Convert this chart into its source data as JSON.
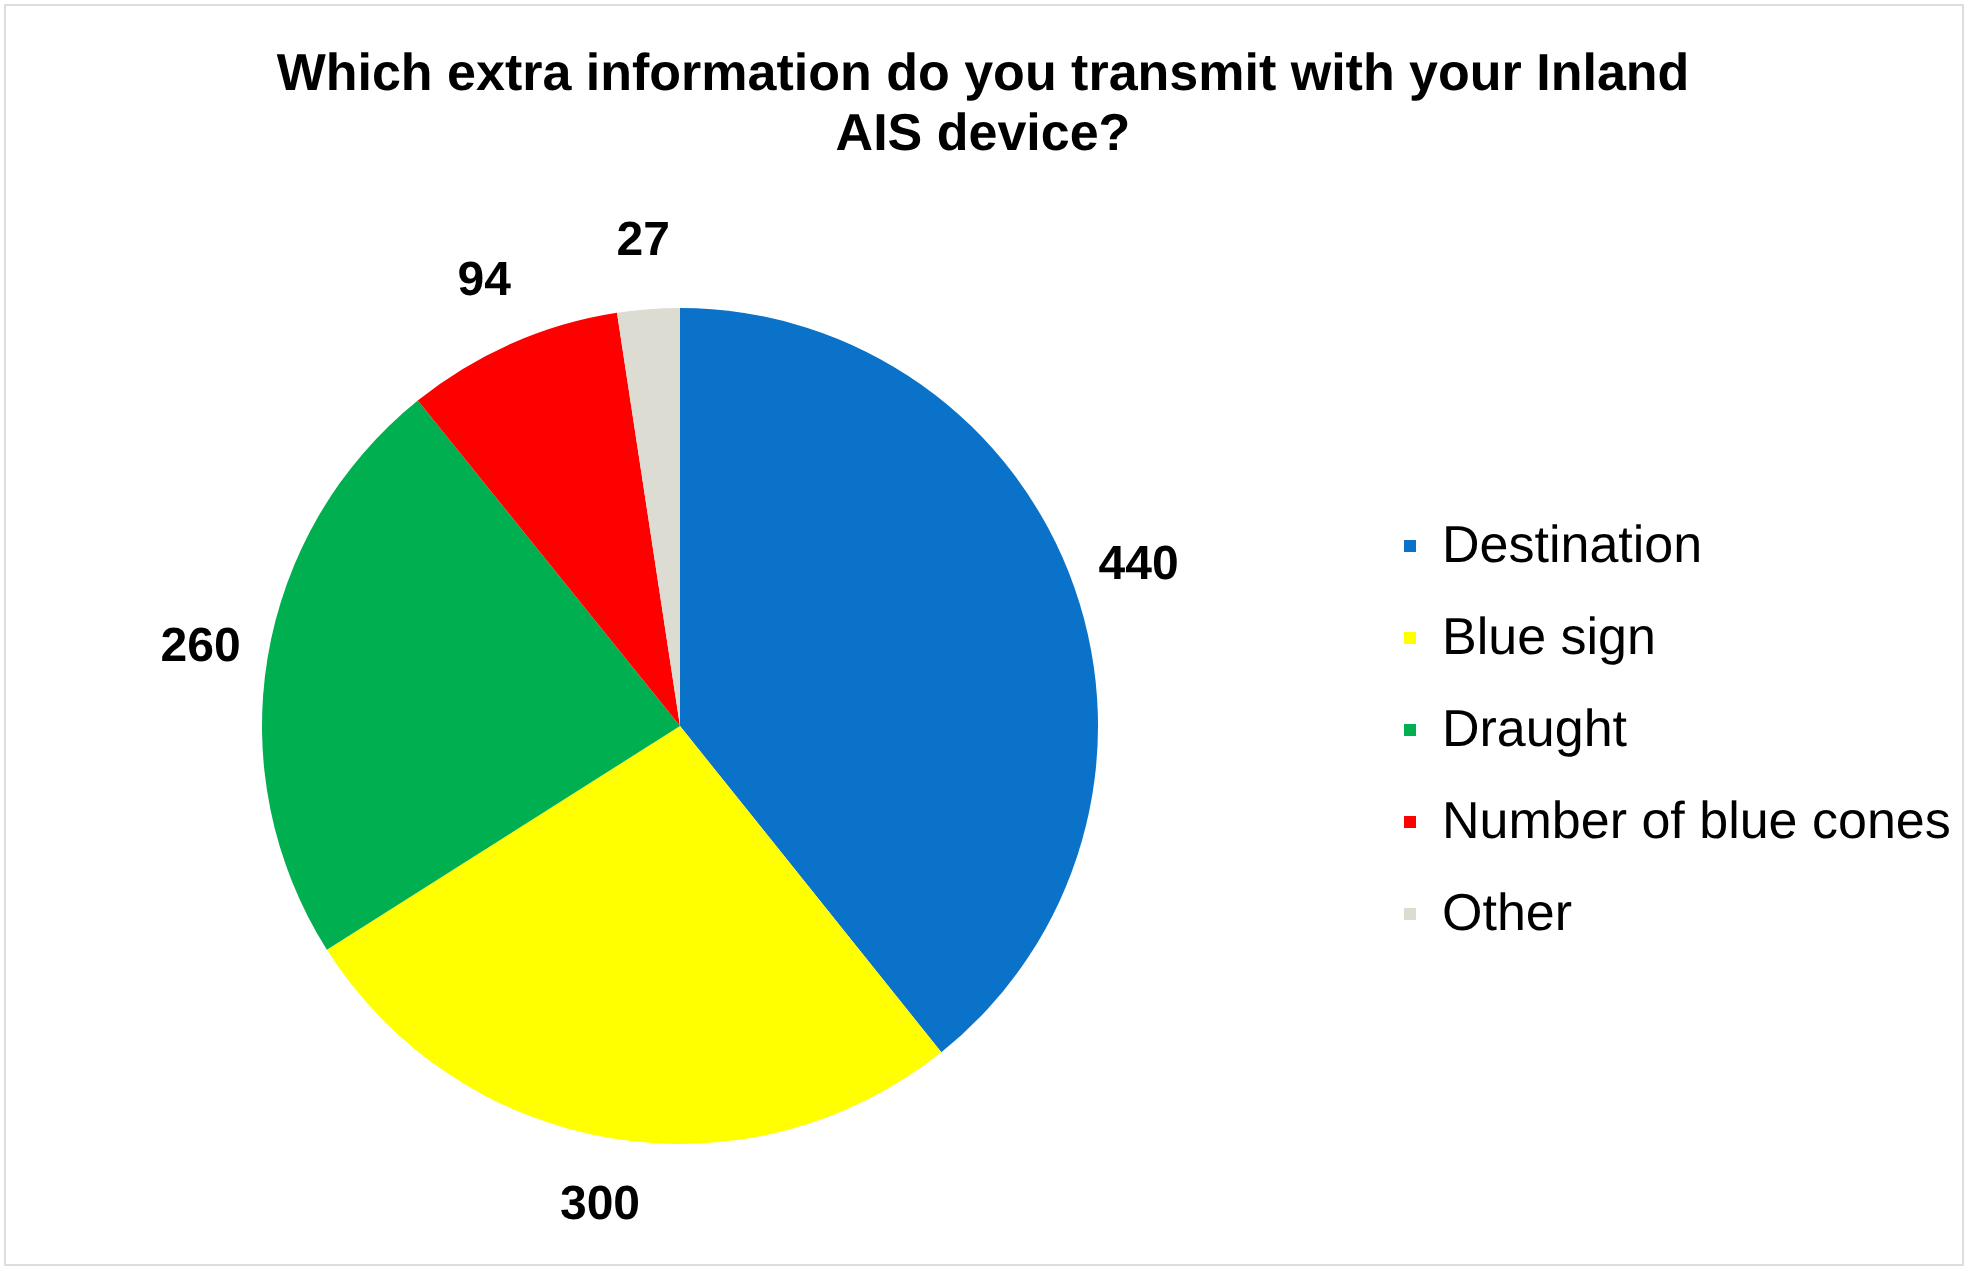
{
  "chart_data": {
    "type": "pie",
    "title": "Which extra information do you transmit with your Inland AIS device?",
    "categories": [
      "Destination",
      "Blue sign",
      "Draught",
      "Number of blue cones",
      "Other"
    ],
    "values": [
      440,
      300,
      260,
      94,
      27
    ],
    "colors": [
      "#0a72c8",
      "#ffff00",
      "#00b050",
      "#ff0000",
      "#dcdcd2"
    ],
    "data_labels": true,
    "legend": "right"
  }
}
